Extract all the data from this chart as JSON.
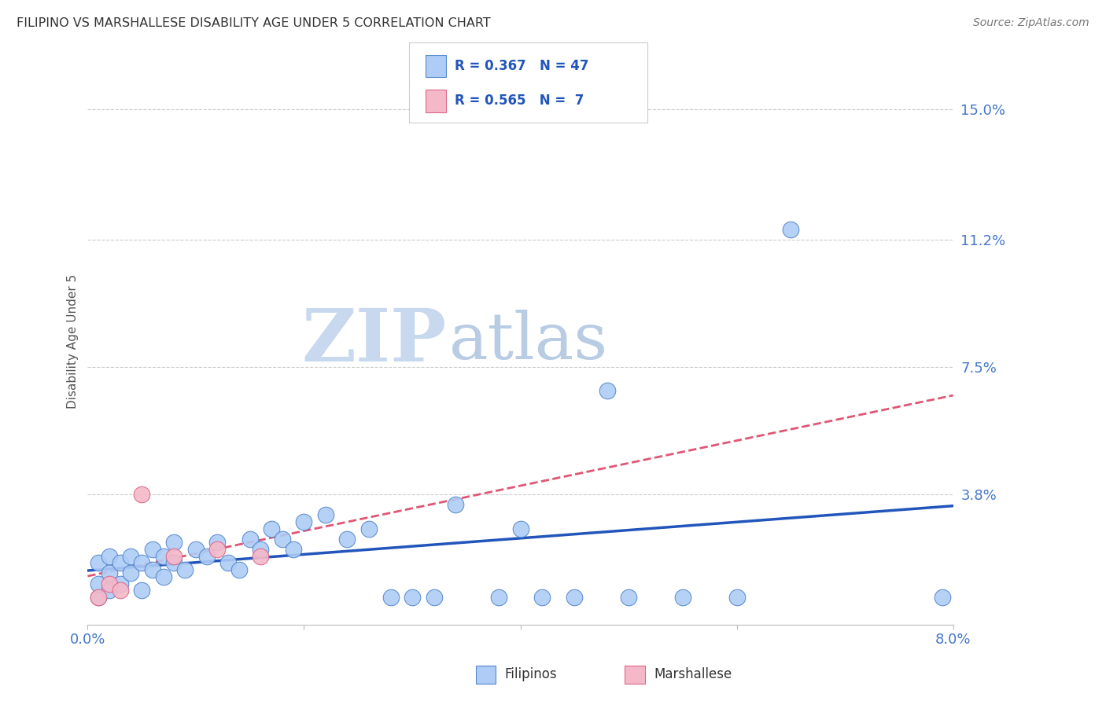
{
  "title": "FILIPINO VS MARSHALLESE DISABILITY AGE UNDER 5 CORRELATION CHART",
  "source": "Source: ZipAtlas.com",
  "ylabel": "Disability Age Under 5",
  "xlim": [
    0.0,
    0.08
  ],
  "ylim": [
    0.0,
    0.165
  ],
  "ytick_positions": [
    0.0,
    0.038,
    0.075,
    0.112,
    0.15
  ],
  "ytick_labels": [
    "",
    "3.8%",
    "7.5%",
    "11.2%",
    "15.0%"
  ],
  "xtick_positions": [
    0.0,
    0.02,
    0.04,
    0.06,
    0.08
  ],
  "xtick_labels": [
    "0.0%",
    "",
    "",
    "",
    "8.0%"
  ],
  "filipino_R": 0.367,
  "filipino_N": 47,
  "marshallese_R": 0.565,
  "marshallese_N": 7,
  "filipino_color": "#aeccf5",
  "marshallese_color": "#f5b8c8",
  "filipino_edge_color": "#5588cc",
  "marshallese_edge_color": "#dd6688",
  "filipino_line_color": "#2255bb",
  "marshallese_line_color": "#dd4466",
  "axis_color": "#4477cc",
  "title_color": "#333333",
  "source_color": "#777777",
  "grid_color": "#cccccc",
  "watermark_zip_color": "#c8d8ee",
  "watermark_atlas_color": "#b8cce4",
  "background_color": "#ffffff",
  "fil_x": [
    0.001,
    0.001,
    0.001,
    0.002,
    0.002,
    0.002,
    0.003,
    0.003,
    0.004,
    0.004,
    0.005,
    0.005,
    0.006,
    0.006,
    0.007,
    0.007,
    0.008,
    0.008,
    0.009,
    0.01,
    0.011,
    0.012,
    0.013,
    0.014,
    0.015,
    0.016,
    0.017,
    0.018,
    0.019,
    0.02,
    0.022,
    0.024,
    0.026,
    0.028,
    0.03,
    0.032,
    0.034,
    0.038,
    0.04,
    0.042,
    0.045,
    0.048,
    0.05,
    0.055,
    0.06,
    0.065,
    0.079
  ],
  "fil_y": [
    0.008,
    0.012,
    0.018,
    0.01,
    0.015,
    0.02,
    0.012,
    0.018,
    0.015,
    0.02,
    0.01,
    0.018,
    0.016,
    0.022,
    0.014,
    0.02,
    0.018,
    0.024,
    0.016,
    0.022,
    0.02,
    0.024,
    0.018,
    0.016,
    0.025,
    0.022,
    0.028,
    0.025,
    0.022,
    0.03,
    0.032,
    0.025,
    0.028,
    0.008,
    0.008,
    0.008,
    0.035,
    0.008,
    0.028,
    0.008,
    0.008,
    0.068,
    0.008,
    0.008,
    0.008,
    0.115,
    0.008
  ],
  "mar_x": [
    0.001,
    0.002,
    0.003,
    0.005,
    0.008,
    0.012,
    0.016
  ],
  "mar_y": [
    0.008,
    0.012,
    0.01,
    0.038,
    0.02,
    0.022,
    0.02
  ],
  "legend_text_color": "#2255bb"
}
